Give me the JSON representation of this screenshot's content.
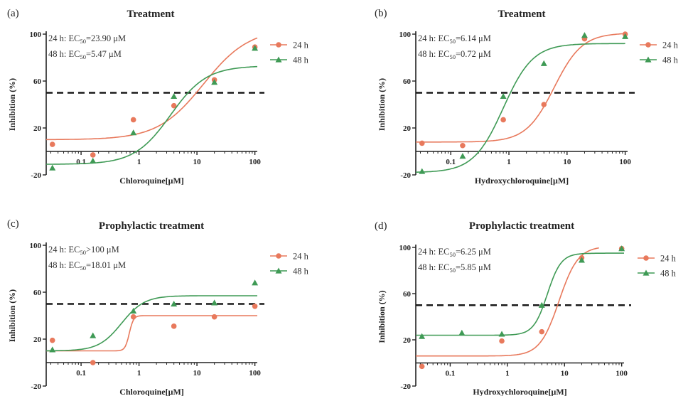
{
  "colors": {
    "h24": "#e8795c",
    "h48": "#3f9a55",
    "threshold": "#1a1a1a",
    "axis": "#222222"
  },
  "chart_data": [
    {
      "type": "scatter",
      "panel_label": "(a)",
      "title": "Treatment",
      "xlabel": "Chloroquine[μM]",
      "ylabel": "Inhibition (%)",
      "xscale": "log",
      "xlim": [
        0.025,
        110
      ],
      "ylim": [
        -20,
        100
      ],
      "x_ticks": [
        0.1,
        1,
        10,
        100
      ],
      "x_tick_labels": [
        "0.1",
        "1",
        "10",
        "100"
      ],
      "y_ticks": [
        -20,
        20,
        60,
        100
      ],
      "y_tick_labels": [
        "-20",
        "20",
        "60",
        "100"
      ],
      "threshold": 50,
      "legend_position": "right",
      "annotations": [
        {
          "prefix": "24 h: EC",
          "sub": "50",
          "suffix": "=23.90 μM"
        },
        {
          "prefix": "48 h: EC",
          "sub": "50",
          "suffix": "=5.47 μM"
        }
      ],
      "series": [
        {
          "name": "24 h",
          "marker": "circle",
          "x": [
            0.032,
            0.16,
            0.8,
            4,
            20,
            100
          ],
          "y": [
            6,
            -3,
            27,
            39,
            61,
            89
          ],
          "fit": {
            "bottom": 10,
            "top": 105,
            "ec50": 13,
            "hill": 1.1,
            "xmax": 110
          }
        },
        {
          "name": "48 h",
          "marker": "triangle",
          "x": [
            0.032,
            0.16,
            0.8,
            4,
            20,
            100
          ],
          "y": [
            -14,
            -8,
            16,
            47,
            59,
            88
          ],
          "fit": {
            "bottom": -11,
            "top": 73,
            "ec50": 3.5,
            "hill": 1.4,
            "xmax": 110
          }
        }
      ]
    },
    {
      "type": "scatter",
      "panel_label": "(b)",
      "title": "Treatment",
      "xlabel": "Hydroxychloroquine[μM]",
      "ylabel": "Inhibition (%)",
      "xscale": "log",
      "xlim": [
        0.025,
        110
      ],
      "ylim": [
        -20,
        100
      ],
      "x_ticks": [
        0.1,
        1,
        10,
        100
      ],
      "x_tick_labels": [
        "0.1",
        "1",
        "10",
        "100"
      ],
      "y_ticks": [
        -20,
        20,
        60,
        100
      ],
      "y_tick_labels": [
        "-20",
        "20",
        "60",
        "100"
      ],
      "threshold": 50,
      "legend_position": "right",
      "annotations": [
        {
          "prefix": "24 h: EC",
          "sub": "50",
          "suffix": "=6.14 μM"
        },
        {
          "prefix": "48 h: EC",
          "sub": "50",
          "suffix": "=0.72 μM"
        }
      ],
      "series": [
        {
          "name": "24 h",
          "marker": "circle",
          "x": [
            0.032,
            0.16,
            0.8,
            4,
            20,
            100
          ],
          "y": [
            7,
            5,
            27,
            40,
            96,
            100
          ],
          "fit": {
            "bottom": 8,
            "top": 101,
            "ec50": 6,
            "hill": 1.8,
            "xmax": 100
          }
        },
        {
          "name": "48 h",
          "marker": "triangle",
          "x": [
            0.032,
            0.16,
            0.8,
            4,
            20,
            100
          ],
          "y": [
            -17,
            -4,
            47,
            75,
            99,
            98
          ],
          "fit": {
            "bottom": -18,
            "top": 92,
            "ec50": 0.8,
            "hill": 1.7,
            "xmax": 100
          }
        }
      ]
    },
    {
      "type": "scatter",
      "panel_label": "(c)",
      "title": "Prophylactic treatment",
      "xlabel": "Chloroquine[μM]",
      "ylabel": "Inhibition (%)",
      "xscale": "log",
      "xlim": [
        0.025,
        110
      ],
      "ylim": [
        -20,
        100
      ],
      "x_ticks": [
        0.1,
        1,
        10,
        100
      ],
      "x_tick_labels": [
        "0.1",
        "1",
        "10",
        "100"
      ],
      "y_ticks": [
        -20,
        20,
        60,
        100
      ],
      "y_tick_labels": [
        "-20",
        "20",
        "60",
        "100"
      ],
      "threshold": 50,
      "legend_position": "right",
      "annotations": [
        {
          "prefix": "24 h: EC",
          "sub": "50",
          "suffix": ">100 μM"
        },
        {
          "prefix": "48 h: EC",
          "sub": "50",
          "suffix": "=18.01 μM"
        }
      ],
      "series": [
        {
          "name": "24 h",
          "marker": "circle",
          "x": [
            0.032,
            0.16,
            0.8,
            4,
            20,
            100
          ],
          "y": [
            19,
            0,
            39,
            31,
            39,
            48
          ],
          "fit": {
            "bottom": 10,
            "top": 40,
            "ec50": 0.68,
            "hill": 12,
            "xmax": 110
          }
        },
        {
          "name": "48 h",
          "marker": "triangle",
          "x": [
            0.032,
            0.16,
            0.8,
            4,
            20,
            100
          ],
          "y": [
            11,
            23,
            44,
            50,
            51,
            68
          ],
          "fit": {
            "bottom": 10,
            "top": 57,
            "ec50": 0.5,
            "hill": 2.2,
            "xmax": 110
          }
        }
      ]
    },
    {
      "type": "scatter",
      "panel_label": "(d)",
      "title": "Prophylactic treatment",
      "xlabel": "Hydroxychloroquine[μM]",
      "ylabel": "Inhibition (%)",
      "xscale": "log",
      "xlim": [
        0.025,
        110
      ],
      "ylim": [
        -20,
        100
      ],
      "x_ticks": [
        0.1,
        1,
        10,
        100
      ],
      "x_tick_labels": [
        "0.1",
        "1",
        "10",
        "100"
      ],
      "y_ticks": [
        -20,
        20,
        60,
        100
      ],
      "y_tick_labels": [
        "-20",
        "20",
        "60",
        "100"
      ],
      "threshold": 50,
      "legend_position": "right",
      "annotations": [
        {
          "prefix": "24 h: EC",
          "sub": "50",
          "suffix": "=6.25 μM"
        },
        {
          "prefix": "48 h: EC",
          "sub": "50",
          "suffix": "=5.85 μM"
        }
      ],
      "series": [
        {
          "name": "24 h",
          "marker": "circle",
          "x": [
            0.032,
            0.8,
            4,
            20,
            100
          ],
          "y": [
            -3,
            19,
            27,
            91,
            99
          ],
          "fit": {
            "bottom": 6,
            "top": 101,
            "ec50": 8,
            "hill": 2.6,
            "xmax": 40
          }
        },
        {
          "name": "48 h",
          "marker": "triangle",
          "x": [
            0.032,
            0.16,
            0.8,
            4,
            20,
            100
          ],
          "y": [
            23,
            26,
            25,
            50,
            89,
            99
          ],
          "fit": {
            "bottom": 24,
            "top": 95,
            "ec50": 5,
            "hill": 3.6,
            "xmax": 110
          }
        }
      ]
    }
  ]
}
